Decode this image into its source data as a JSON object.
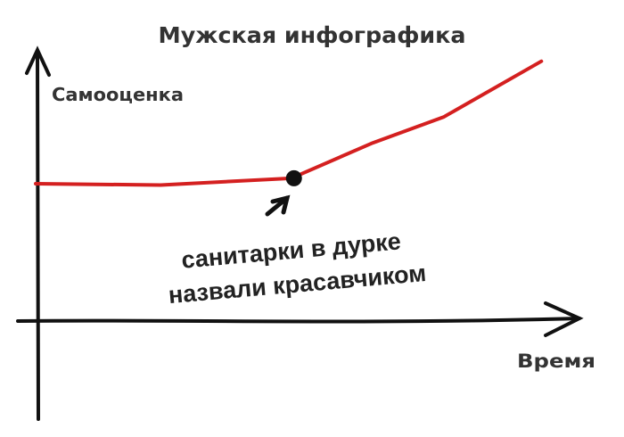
{
  "chart_data": {
    "type": "line",
    "title": "Мужская инфографика",
    "xlabel": "Время",
    "ylabel": "Самооценка",
    "xlim": [
      0,
      10
    ],
    "ylim": [
      0,
      10
    ],
    "grid": false,
    "series": [
      {
        "color": "#d42020",
        "x": [
          0,
          2.3,
          4.7,
          6.2,
          7.5,
          9.3
        ],
        "y": [
          5.05,
          5.0,
          5.25,
          6.55,
          7.5,
          9.55
        ]
      }
    ],
    "annotation": {
      "text_line1": "санитарки в дурке",
      "text_line2": "назвали красавчиком",
      "point": {
        "x": 4.75,
        "y": 5.25
      },
      "marker_color": "#111111"
    }
  }
}
